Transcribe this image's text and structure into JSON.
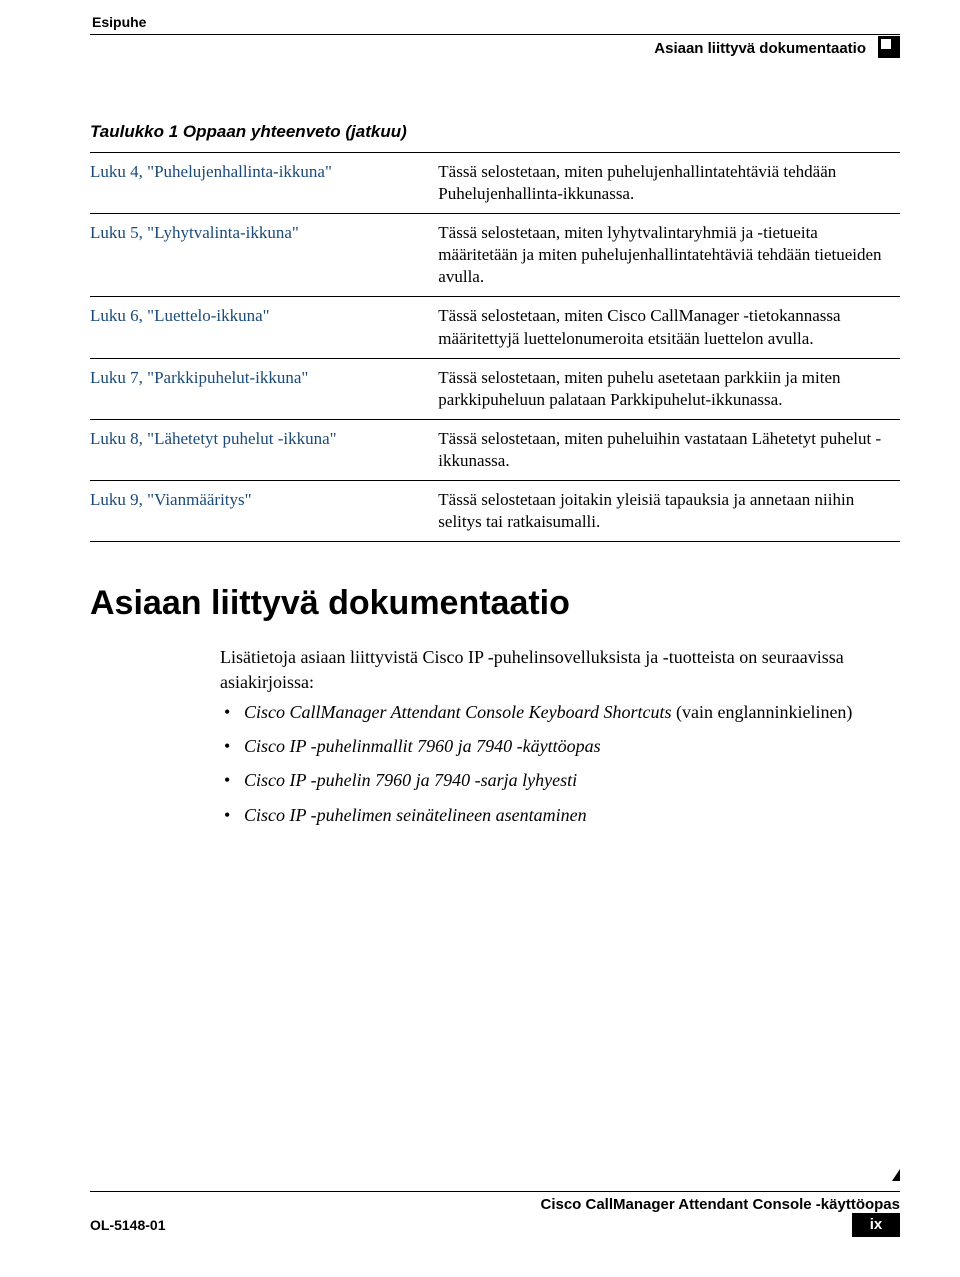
{
  "header": {
    "left": "Esipuhe",
    "right": "Asiaan liittyvä dokumentaatio"
  },
  "table": {
    "caption": "Taulukko 1 Oppaan yhteenveto (jatkuu)",
    "rows": [
      {
        "left": "Luku 4, \"Puhelujenhallinta-ikkuna\"",
        "right": "Tässä selostetaan, miten puhelujenhallintatehtäviä tehdään Puhelujenhallinta-ikkunassa."
      },
      {
        "left": "Luku 5, \"Lyhytvalinta-ikkuna\"",
        "right": "Tässä selostetaan, miten lyhytvalintaryhmiä ja -tietueita määritetään ja miten puhelujenhallintatehtäviä tehdään tietueiden avulla."
      },
      {
        "left": "Luku 6, \"Luettelo-ikkuna\"",
        "right": "Tässä selostetaan, miten Cisco CallManager -tietokannassa määritettyjä luettelonumeroita etsitään luettelon avulla."
      },
      {
        "left": "Luku 7, \"Parkkipuhelut-ikkuna\"",
        "right": "Tässä selostetaan, miten puhelu asetetaan parkkiin ja miten parkkipuheluun palataan Parkkipuhelut-ikkunassa."
      },
      {
        "left": "Luku 8, \"Lähetetyt puhelut -ikkuna\"",
        "right": "Tässä selostetaan, miten puheluihin vastataan Lähetetyt puhelut -ikkunassa."
      },
      {
        "left": "Luku 9, \"Vianmääritys\"",
        "right": "Tässä selostetaan joitakin yleisiä tapauksia ja annetaan niihin selitys tai ratkaisumalli."
      }
    ]
  },
  "section": {
    "heading": "Asiaan liittyvä dokumentaatio",
    "intro": "Lisätietoja asiaan liittyvistä Cisco IP -puhelinsovelluksista ja -tuotteista on seuraavissa asiakirjoissa:",
    "bullets": [
      {
        "italic": "Cisco CallManager Attendant Console Keyboard Shortcuts",
        "tail": " (vain englanninkielinen)"
      },
      {
        "italic": "Cisco IP -puhelinmallit 7960 ja 7940 -käyttöopas",
        "tail": ""
      },
      {
        "italic": "Cisco IP -puhelin 7960 ja 7940 -sarja lyhyesti",
        "tail": ""
      },
      {
        "italic": "Cisco IP -puhelimen seinätelineen asentaminen",
        "tail": ""
      }
    ]
  },
  "footer": {
    "title": "Cisco CallManager Attendant Console -käyttöopas",
    "left": "OL-5148-01",
    "page": "ix"
  }
}
